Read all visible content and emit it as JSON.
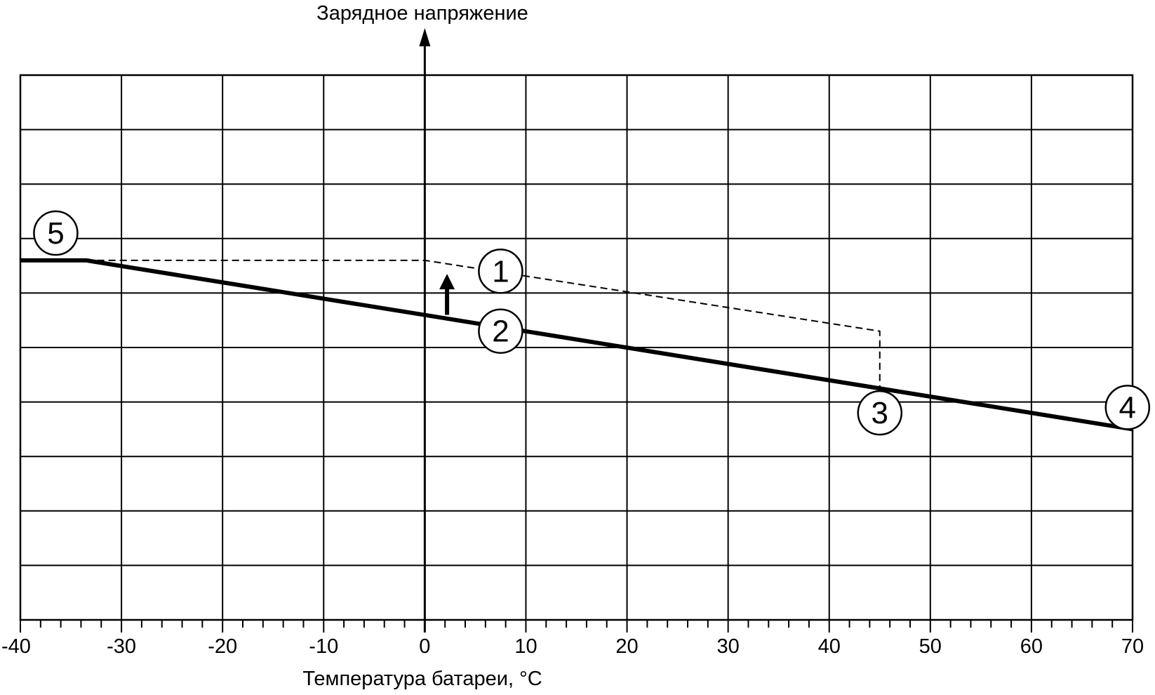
{
  "chart_data": {
    "type": "line",
    "title": "",
    "xlabel": "Температура батареи, °C",
    "ylabel": "Зарядное напряжение",
    "xlim": [
      -40,
      70
    ],
    "ylim": [
      0,
      10
    ],
    "x_ticks": [
      -40,
      -30,
      -20,
      -10,
      0,
      10,
      20,
      30,
      40,
      50,
      60,
      70
    ],
    "x_tick_labels": [
      "-40",
      "-30",
      "-20",
      "-10",
      "0",
      "10",
      "20",
      "30",
      "40",
      "50",
      "60",
      "70"
    ],
    "y_tick_labels": [],
    "grid": true,
    "series": [
      {
        "style": "solid-thick",
        "x": [
          -40,
          -33.5,
          70
        ],
        "y": [
          6.6,
          6.6,
          3.5
        ]
      },
      {
        "style": "dashed",
        "x": [
          -33.5,
          0,
          45,
          45
        ],
        "y": [
          6.6,
          6.6,
          5.3,
          4.2
        ]
      }
    ],
    "annotations": [
      {
        "label": "1",
        "x": 7.5,
        "y": 6.4
      },
      {
        "label": "2",
        "x": 7.5,
        "y": 5.3
      },
      {
        "label": "3",
        "x": 45,
        "y": 3.8
      },
      {
        "label": "4",
        "x": 69.5,
        "y": 3.9
      },
      {
        "label": "5",
        "x": -36.5,
        "y": 7.1
      }
    ],
    "arrow": {
      "x": 2.2,
      "y_from": 5.6,
      "y_to": 6.3
    }
  }
}
